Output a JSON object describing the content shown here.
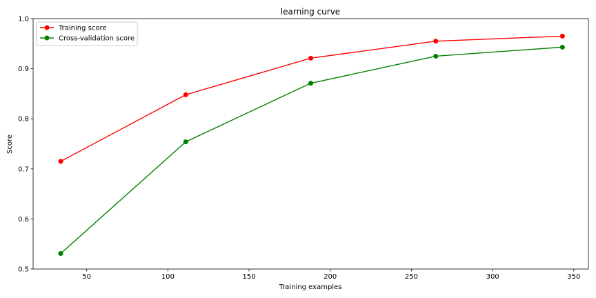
{
  "chart_data": {
    "type": "line",
    "title": "learning curve",
    "xlabel": "Training examples",
    "ylabel": "Score",
    "xlim": [
      17,
      359
    ],
    "ylim": [
      0.5,
      1.0
    ],
    "xticks": [
      50,
      100,
      150,
      200,
      250,
      300,
      350
    ],
    "yticks": [
      0.5,
      0.6,
      0.7,
      0.8,
      0.9,
      1.0
    ],
    "grid": false,
    "legend_position": "top-left",
    "x": [
      34,
      111,
      188,
      265,
      343
    ],
    "series": [
      {
        "name": "Training score",
        "color": "#ff0000",
        "values": [
          0.715,
          0.848,
          0.921,
          0.955,
          0.965
        ]
      },
      {
        "name": "Cross-validation score",
        "color": "#008000",
        "values": [
          0.531,
          0.754,
          0.871,
          0.925,
          0.943
        ]
      }
    ]
  }
}
